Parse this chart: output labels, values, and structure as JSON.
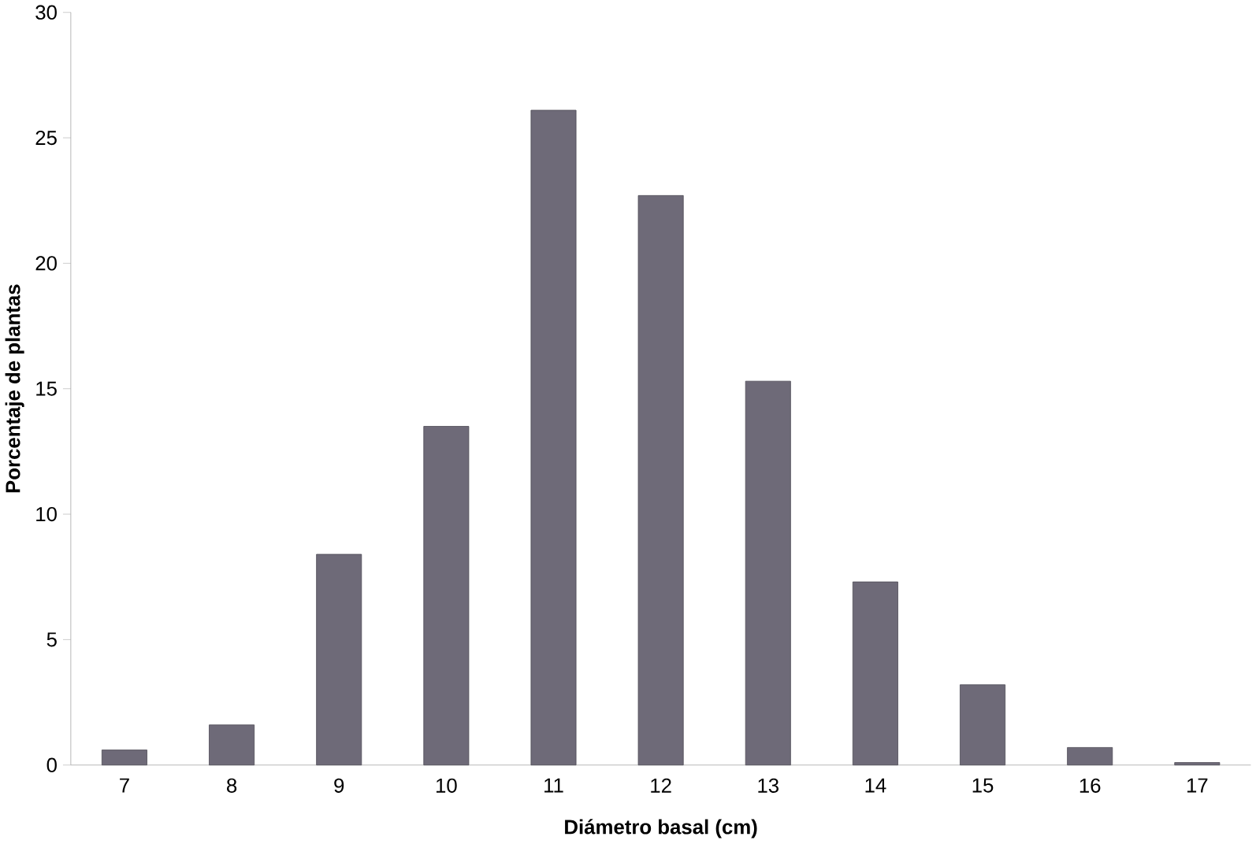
{
  "chart_data": {
    "type": "bar",
    "xlabel": "Diámetro basal (cm)",
    "ylabel": "Porcentaje de plantas",
    "categories": [
      "7",
      "8",
      "9",
      "10",
      "11",
      "12",
      "13",
      "14",
      "15",
      "16",
      "17"
    ],
    "values": [
      0.6,
      1.6,
      8.4,
      13.5,
      26.1,
      22.7,
      15.3,
      7.3,
      3.2,
      0.7,
      0.1
    ],
    "color": "#6e6a78",
    "ylim": [
      0,
      30
    ],
    "yticks": [
      0,
      5,
      10,
      15,
      20,
      25,
      30
    ],
    "grid": false
  }
}
